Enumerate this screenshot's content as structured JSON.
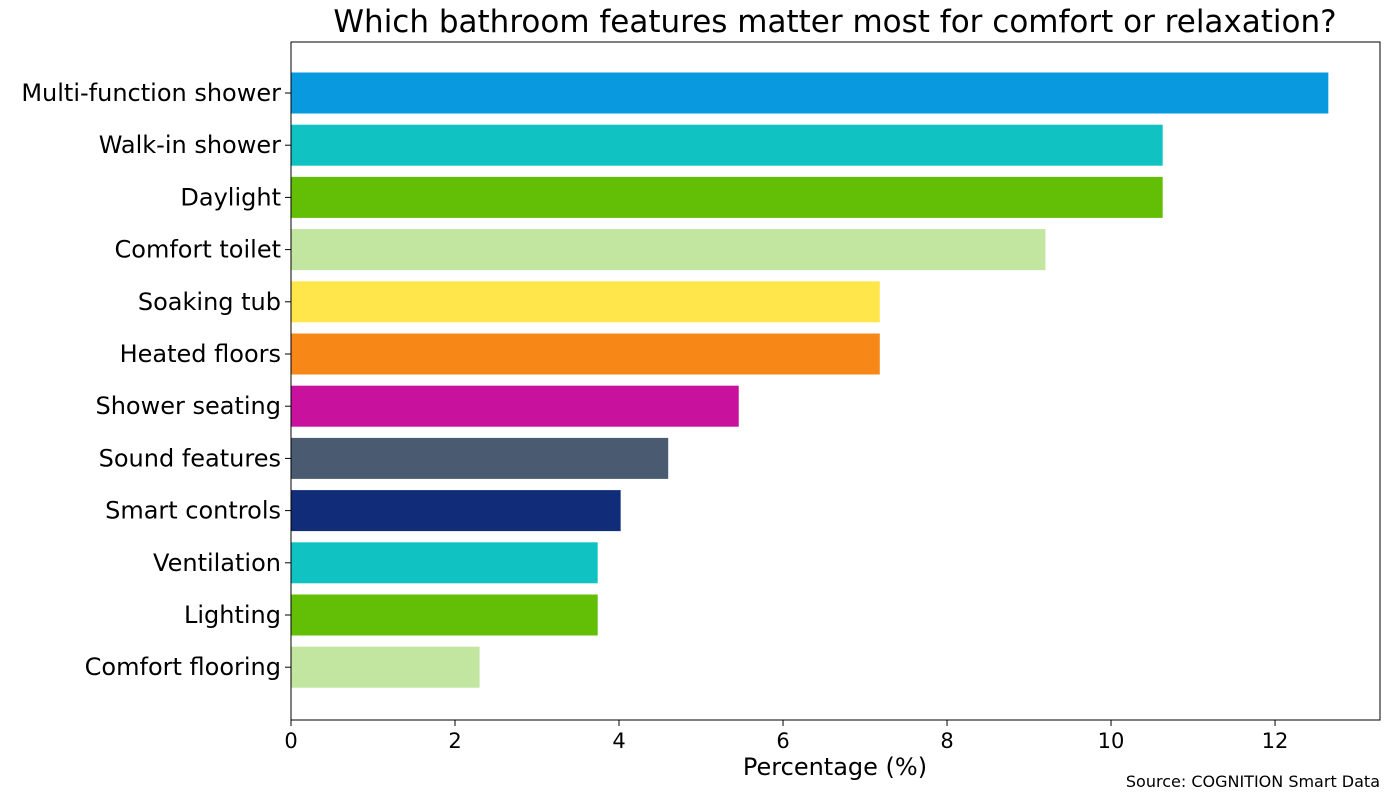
{
  "chart_data": {
    "type": "bar",
    "orientation": "horizontal",
    "title": "Which bathroom features matter most for comfort or relaxation?",
    "xlabel": "Percentage (%)",
    "ylabel": "",
    "source": "Source: COGNITION Smart Data",
    "categories": [
      "Multi-function shower",
      "Walk-in shower",
      "Daylight",
      "Comfort toilet",
      "Soaking tub",
      "Heated floors",
      "Shower seating",
      "Sound features",
      "Smart controls",
      "Ventilation",
      "Lighting",
      "Comfort flooring"
    ],
    "values": [
      12.65,
      10.63,
      10.63,
      9.2,
      7.18,
      7.18,
      5.46,
      4.6,
      4.02,
      3.74,
      3.74,
      2.3
    ],
    "colors": [
      "#0899df",
      "#10c2c2",
      "#62bf06",
      "#c2e59f",
      "#ffe64b",
      "#f78818",
      "#c8129e",
      "#4a5b71",
      "#112d7a",
      "#10c2c2",
      "#62bf06",
      "#c2e59f"
    ],
    "xlim": [
      0,
      13.28
    ],
    "xticks": [
      0,
      2,
      4,
      6,
      8,
      10,
      12
    ],
    "grid": false,
    "legend": "none"
  }
}
